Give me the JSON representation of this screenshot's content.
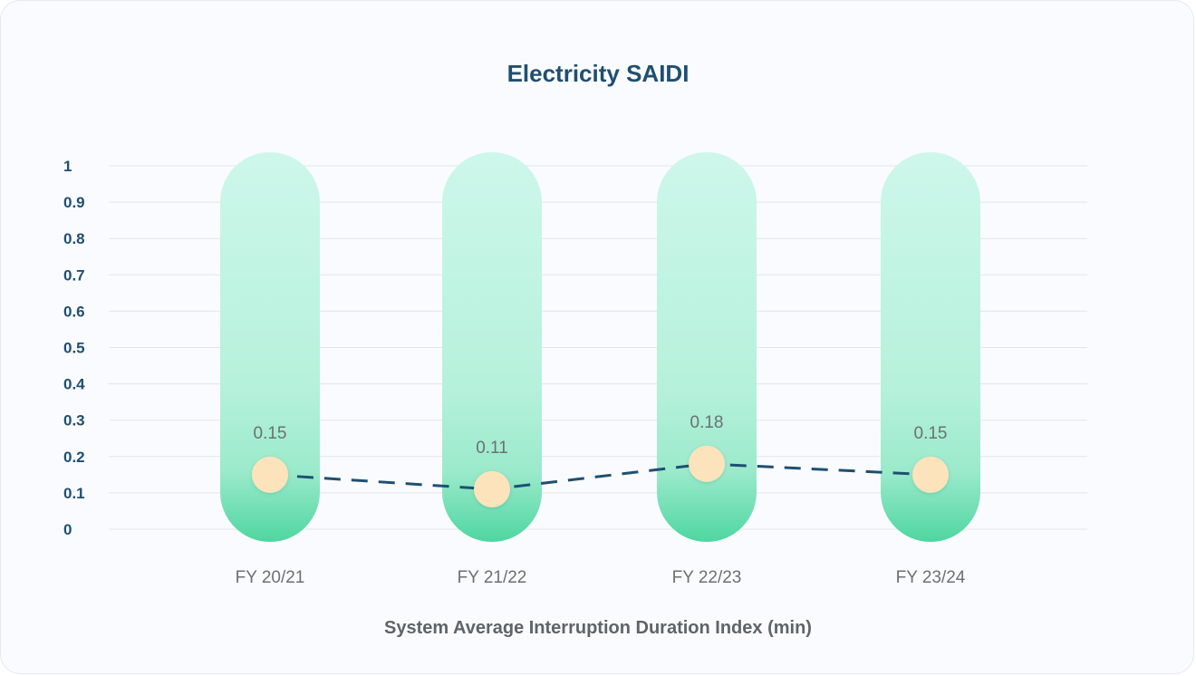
{
  "chart_data": {
    "type": "line",
    "title": "Electricity SAIDI",
    "subtitle": "System Average Interruption Duration Index (min)",
    "categories": [
      "FY 20/21",
      "FY 21/22",
      "FY 22/23",
      "FY 23/24"
    ],
    "series": [
      {
        "values": [
          0.15,
          0.11,
          0.18,
          0.15
        ]
      }
    ],
    "data_labels": [
      "0.15",
      "0.11",
      "0.18",
      "0.15"
    ],
    "ylim": [
      0,
      1
    ],
    "yticks": [
      "0",
      "0.1",
      "0.2",
      "0.3",
      "0.4",
      "0.5",
      "0.6",
      "0.7",
      "0.8",
      "0.9",
      "1"
    ],
    "grid": true,
    "line_style": "dashed",
    "colors": {
      "title": "#1f4f72",
      "line": "#1f4f72",
      "marker": "#fde3bb",
      "pill_top": "#cdf7ea",
      "pill_bottom": "#4fd6a1",
      "grid": "#e2e5ea",
      "tick_y": "#1f4f72",
      "tick_x": "#6b7074"
    }
  }
}
